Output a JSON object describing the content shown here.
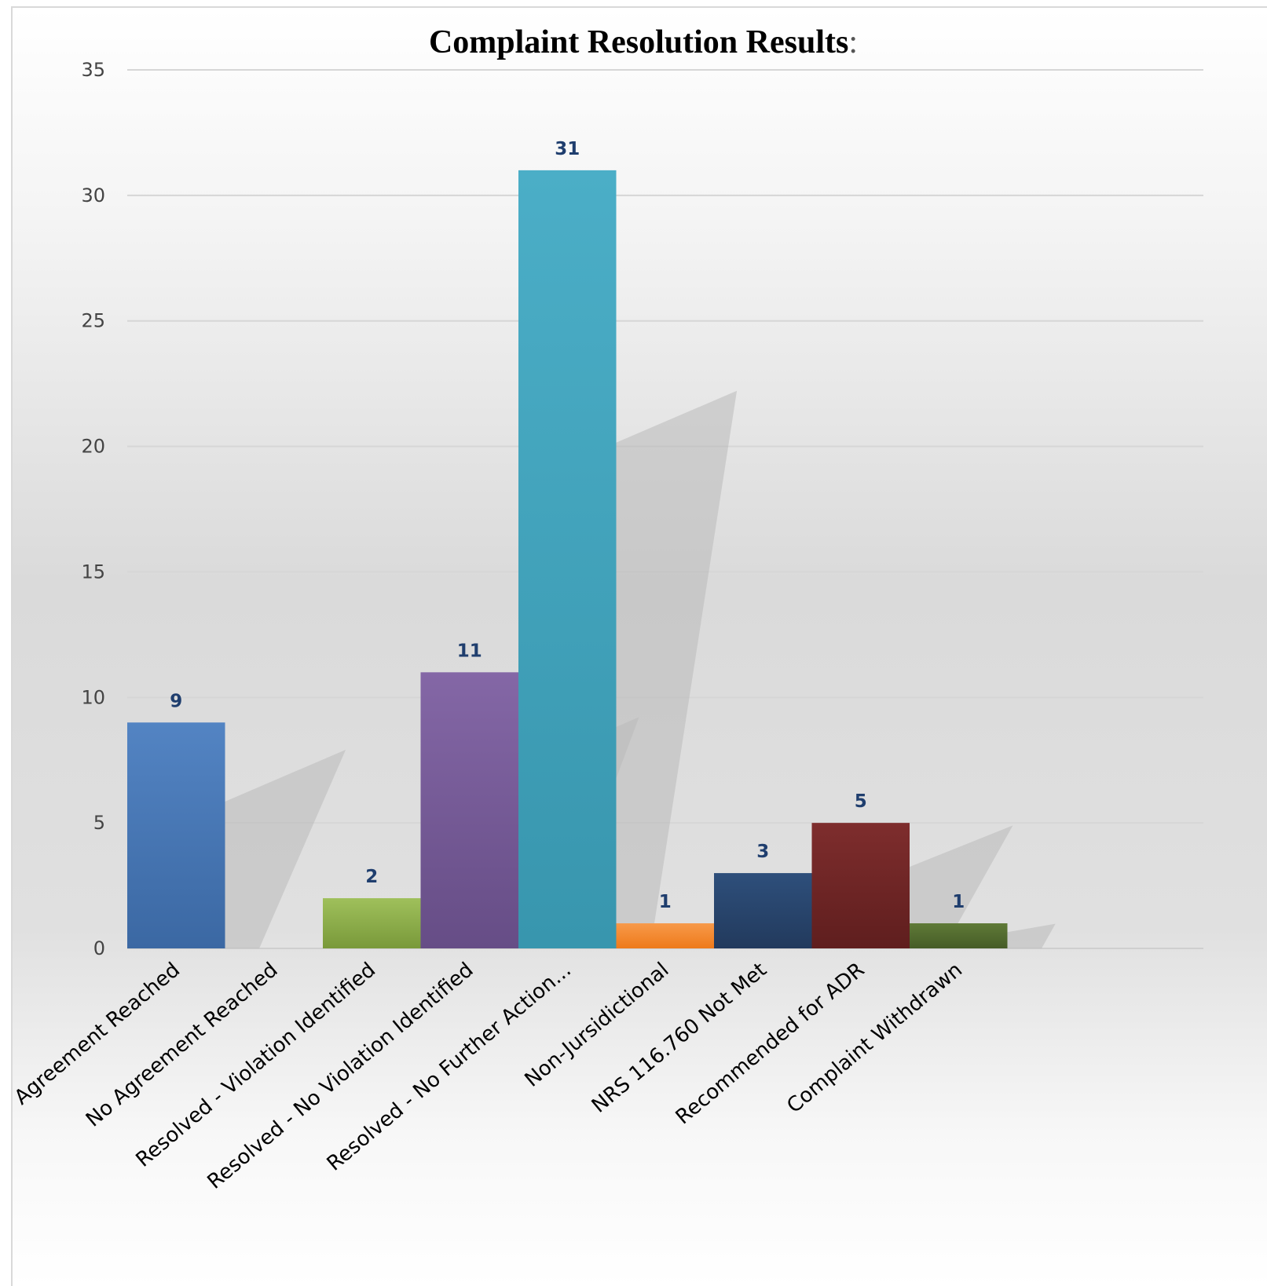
{
  "chart_data": {
    "type": "bar",
    "title": "Complaint Resolution Results",
    "title_suffix": ":",
    "categories": [
      "Agreement Reached",
      "No Agreement Reached",
      "Resolved - Violation Identified",
      "Resolved - No Violation Identified",
      "Resolved - No Further Action...",
      "Non-Jursidictional",
      "NRS 116.760 Not Met",
      "Recommended for ADR",
      "Complaint Withdrawn"
    ],
    "values": [
      9,
      0,
      2,
      11,
      31,
      1,
      3,
      5,
      1
    ],
    "data_labels": [
      "9",
      "",
      "2",
      "11",
      "31",
      "1",
      "3",
      "5",
      "1"
    ],
    "colors": [
      [
        "#5384c3",
        "#3b68a3"
      ],
      [
        "#d5d5d5",
        "#d5d5d5"
      ],
      [
        "#9fc05b",
        "#79993a"
      ],
      [
        "#8467a6",
        "#664d86"
      ],
      [
        "#4baec7",
        "#3896ae"
      ],
      [
        "#f79a4a",
        "#ee7a1a"
      ],
      [
        "#2e4f7b",
        "#223a5d"
      ],
      [
        "#7e2d2d",
        "#5f1e1e"
      ],
      [
        "#5f7a37",
        "#465c27"
      ]
    ],
    "ylim": [
      0,
      35
    ],
    "yticks": [
      "0",
      "5",
      "10",
      "15",
      "20",
      "25",
      "30",
      "35"
    ],
    "xlabel": "",
    "ylabel": "",
    "grid": true,
    "legend": "none"
  }
}
